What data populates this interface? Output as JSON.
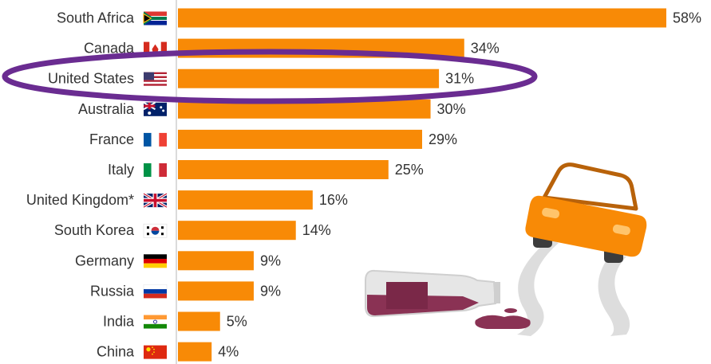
{
  "colors": {
    "bar": "#f88a06",
    "axis": "#cfcfcf",
    "highlight_ellipse": "#6a2c91",
    "text": "#333333"
  },
  "chart_data": {
    "type": "bar",
    "orientation": "horizontal",
    "categories": [
      "South Africa",
      "Canada",
      "United States",
      "Australia",
      "France",
      "Italy",
      "United Kingdom*",
      "South Korea",
      "Germany",
      "Russia",
      "India",
      "China"
    ],
    "values": [
      58,
      34,
      31,
      30,
      29,
      25,
      16,
      14,
      9,
      9,
      5,
      4
    ],
    "value_labels": [
      "58%",
      "34%",
      "31%",
      "30%",
      "29%",
      "25%",
      "16%",
      "14%",
      "9%",
      "9%",
      "5%",
      "4%"
    ],
    "flags": [
      "south-africa-flag-icon",
      "canada-flag-icon",
      "us-flag-icon",
      "australia-flag-icon",
      "france-flag-icon",
      "italy-flag-icon",
      "uk-flag-icon",
      "south-korea-flag-icon",
      "germany-flag-icon",
      "russia-flag-icon",
      "india-flag-icon",
      "china-flag-icon"
    ],
    "unit": "%",
    "xlim": [
      0,
      58
    ],
    "highlighted_category": "United States",
    "grid": false
  },
  "illustration": {
    "icons": [
      "car-icon",
      "wine-bottle-icon",
      "spilled-wine-icon",
      "skid-marks-icon"
    ]
  }
}
